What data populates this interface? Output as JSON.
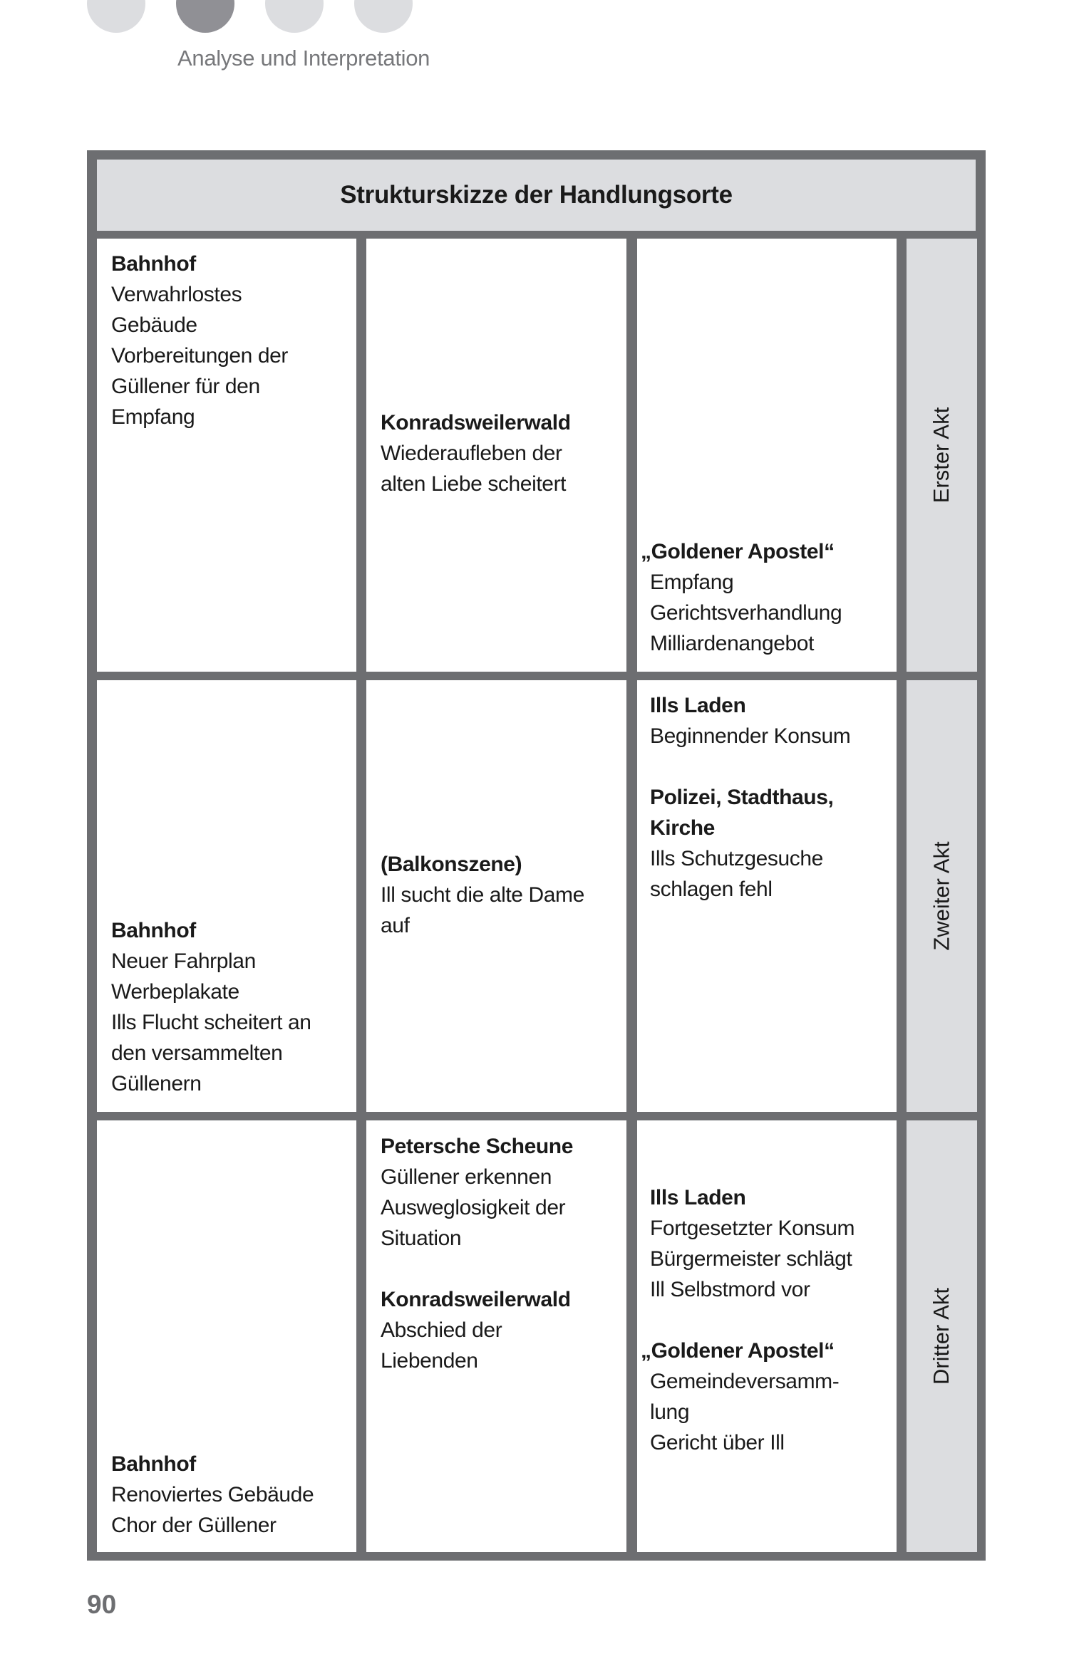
{
  "header": {
    "section_title": "Analyse und Interpretation",
    "chapter_dots": {
      "count": 4,
      "active_index": 1,
      "active_color": "#909095",
      "inactive_color": "#dcdde0"
    }
  },
  "table": {
    "title": "Strukturskizze der Handlungsorte",
    "border_color": "#6d6e71",
    "acts": [
      "Erster Akt",
      "Zweiter Akt",
      "Dritter Akt"
    ],
    "rows": [
      [
        {
          "lines": [
            {
              "text": "Bahnhof",
              "bold": true
            },
            {
              "text": "Verwahrlostes"
            },
            {
              "text": "Gebäude"
            },
            {
              "text": "Vorbereitungen der"
            },
            {
              "text": "Güllener für den"
            },
            {
              "text": "Empfang"
            }
          ]
        },
        {
          "lines": [
            {
              "text": "Konradsweilerwald",
              "bold": true
            },
            {
              "text": "Wiederaufleben der"
            },
            {
              "text": "alten Liebe scheitert"
            }
          ]
        },
        {
          "lines": [
            {
              "text": "„Goldener Apostel“",
              "bold": true,
              "hang": true
            },
            {
              "text": "Empfang"
            },
            {
              "text": "Gerichtsverhandlung"
            },
            {
              "text": "Milliardenangebot"
            }
          ]
        }
      ],
      [
        {
          "lines": [
            {
              "text": "Bahnhof",
              "bold": true
            },
            {
              "text": "Neuer Fahrplan"
            },
            {
              "text": "Werbeplakate"
            },
            {
              "text": "Ills Flucht scheitert an"
            },
            {
              "text": "den versammelten"
            },
            {
              "text": "Güllenern"
            }
          ]
        },
        {
          "lines": [
            {
              "text": "(Balkonszene)",
              "bold": true
            },
            {
              "text": "Ill sucht die alte Dame"
            },
            {
              "text": "auf"
            }
          ]
        },
        {
          "lines": [
            {
              "text": "Ills Laden",
              "bold": true
            },
            {
              "text": "Beginnender Konsum"
            },
            {
              "text": ""
            },
            {
              "text": "Polizei, Stadthaus,",
              "bold": true
            },
            {
              "text": "Kirche",
              "bold": true
            },
            {
              "text": "Ills Schutzgesuche"
            },
            {
              "text": "schlagen fehl"
            }
          ]
        }
      ],
      [
        {
          "lines": [
            {
              "text": "Bahnhof",
              "bold": true
            },
            {
              "text": "Renoviertes Gebäude"
            },
            {
              "text": "Chor der Güllener"
            }
          ]
        },
        {
          "lines": [
            {
              "text": "Petersche Scheune",
              "bold": true
            },
            {
              "text": "Güllener erkennen"
            },
            {
              "text": "Ausweglosigkeit der"
            },
            {
              "text": "Situation"
            },
            {
              "text": ""
            },
            {
              "text": "Konradsweilerwald",
              "bold": true
            },
            {
              "text": "Abschied der"
            },
            {
              "text": "Liebenden"
            }
          ]
        },
        {
          "lines": [
            {
              "text": "Ills Laden",
              "bold": true
            },
            {
              "text": "Fortgesetzter Konsum"
            },
            {
              "text": "Bürgermeister schlägt"
            },
            {
              "text": "Ill Selbstmord vor"
            },
            {
              "text": ""
            },
            {
              "text": "„Goldener Apostel“",
              "bold": true,
              "hang": true
            },
            {
              "text": "Gemeindeversamm-"
            },
            {
              "text": "lung"
            },
            {
              "text": "Gericht über Ill"
            }
          ]
        }
      ]
    ]
  },
  "footer": {
    "page_number": "90"
  }
}
